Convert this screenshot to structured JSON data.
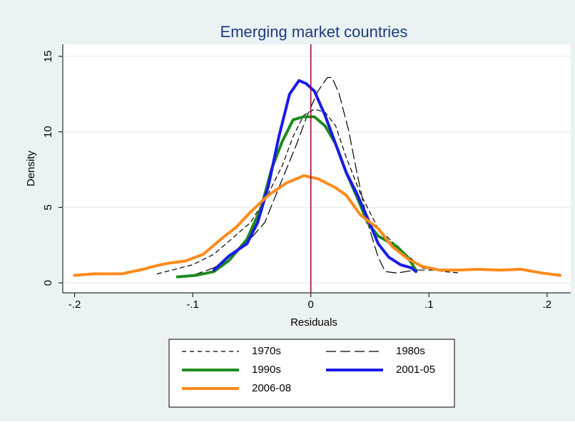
{
  "chart_data": {
    "type": "line",
    "title": "Emerging market countries",
    "xlabel": "Residuals",
    "ylabel": "Density",
    "xlim": [
      -0.21,
      0.22
    ],
    "ylim": [
      -0.66,
      15.8
    ],
    "xticks": [
      {
        "value": -0.2,
        "label": "-.2"
      },
      {
        "value": -0.1,
        "label": "-.1"
      },
      0,
      {
        "value": 0.1,
        "label": ".1"
      },
      {
        "value": 0.2,
        "label": ".2"
      }
    ],
    "yticks": [
      0,
      5,
      10,
      15
    ],
    "grid": true,
    "xline": 0,
    "xline_color": "#990033",
    "legend": "bottom",
    "series": [
      {
        "name": "1970s",
        "color": "#000000",
        "dash": "6 5",
        "width": 1.2,
        "x": [
          -0.13,
          -0.1,
          -0.082,
          -0.051,
          -0.036,
          -0.024,
          -0.015,
          -0.006,
          0.003,
          0.012,
          0.021,
          0.03,
          0.042,
          0.057,
          0.076,
          0.094,
          0.112,
          0.127
        ],
        "values": [
          0.6,
          1.2,
          1.9,
          4.0,
          5.9,
          7.8,
          9.7,
          11.1,
          11.5,
          11.3,
          10.4,
          8.3,
          5.9,
          3.6,
          2.2,
          1.0,
          0.75,
          0.65
        ]
      },
      {
        "name": "1980s",
        "color": "#000000",
        "dash": "14 6",
        "width": 1.2,
        "x": [
          -0.1,
          -0.082,
          -0.057,
          -0.039,
          -0.024,
          -0.012,
          -0.003,
          0.006,
          0.014,
          0.018,
          0.024,
          0.032,
          0.039,
          0.048,
          0.057,
          0.063,
          0.073,
          0.088,
          0.106
        ],
        "values": [
          0.5,
          1.0,
          2.4,
          4.0,
          6.9,
          9.2,
          11.1,
          12.7,
          13.6,
          13.6,
          12.5,
          10.1,
          7.3,
          4.0,
          1.7,
          0.75,
          0.65,
          0.85,
          0.85
        ]
      },
      {
        "name": "1990s",
        "color": "#1e8c1e",
        "dash": "",
        "width": 4,
        "x": [
          -0.113,
          -0.097,
          -0.082,
          -0.069,
          -0.054,
          -0.042,
          -0.033,
          -0.024,
          -0.015,
          -0.006,
          0.003,
          0.012,
          0.021,
          0.03,
          0.039,
          0.048,
          0.057,
          0.073,
          0.082,
          0.089
        ],
        "values": [
          0.4,
          0.5,
          0.75,
          1.5,
          2.9,
          5.0,
          7.6,
          9.4,
          10.8,
          11.0,
          11.0,
          10.4,
          9.2,
          7.3,
          5.7,
          4.0,
          3.1,
          2.4,
          1.7,
          0.85
        ]
      },
      {
        "name": "2001-05",
        "color": "#1a1aeb",
        "dash": "",
        "width": 4,
        "x": [
          -0.082,
          -0.069,
          -0.054,
          -0.045,
          -0.036,
          -0.027,
          -0.018,
          -0.01,
          -0.004,
          0.003,
          0.012,
          0.021,
          0.03,
          0.039,
          0.048,
          0.057,
          0.066,
          0.076,
          0.085,
          0.089
        ],
        "values": [
          0.85,
          1.8,
          2.6,
          4.0,
          6.4,
          9.7,
          12.5,
          13.4,
          13.2,
          12.7,
          11.1,
          9.2,
          7.3,
          5.9,
          4.3,
          2.6,
          1.7,
          1.2,
          1.0,
          0.75
        ]
      },
      {
        "name": "2006-08",
        "color": "#ff8a1c",
        "dash": "",
        "width": 4,
        "x": [
          -0.2,
          -0.184,
          -0.16,
          -0.142,
          -0.133,
          -0.121,
          -0.106,
          -0.091,
          -0.076,
          -0.063,
          -0.051,
          -0.036,
          -0.021,
          -0.006,
          0.006,
          0.021,
          0.03,
          0.042,
          0.057,
          0.069,
          0.082,
          0.094,
          0.109,
          0.124,
          0.142,
          0.16,
          0.178,
          0.196,
          0.211
        ],
        "values": [
          0.5,
          0.6,
          0.6,
          0.9,
          1.1,
          1.3,
          1.45,
          1.9,
          2.9,
          3.7,
          4.7,
          5.8,
          6.6,
          7.1,
          6.9,
          6.3,
          5.8,
          4.5,
          3.6,
          2.4,
          1.6,
          1.1,
          0.85,
          0.85,
          0.9,
          0.85,
          0.9,
          0.65,
          0.5
        ]
      }
    ]
  }
}
